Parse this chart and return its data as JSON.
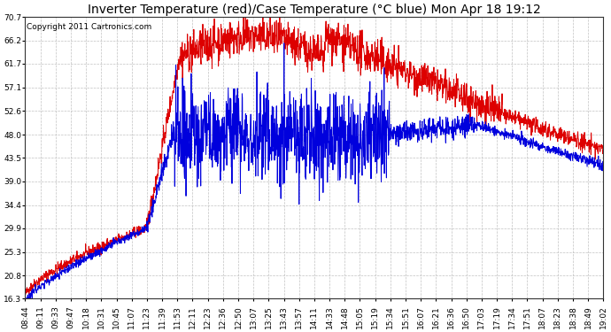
{
  "title": "Inverter Temperature (red)/Case Temperature (°C blue) Mon Apr 18 19:12",
  "copyright": "Copyright 2011 Cartronics.com",
  "ylim": [
    16.3,
    70.7
  ],
  "yticks": [
    16.3,
    20.8,
    25.3,
    29.9,
    34.4,
    39.0,
    43.5,
    48.0,
    52.6,
    57.1,
    61.7,
    66.2,
    70.7
  ],
  "xtick_labels": [
    "08:44",
    "09:11",
    "09:33",
    "09:47",
    "10:18",
    "10:31",
    "10:45",
    "11:07",
    "11:23",
    "11:39",
    "11:53",
    "12:11",
    "12:23",
    "12:36",
    "12:50",
    "13:07",
    "13:25",
    "13:43",
    "13:57",
    "14:11",
    "14:33",
    "14:48",
    "15:05",
    "15:19",
    "15:34",
    "15:51",
    "16:07",
    "16:21",
    "16:36",
    "16:50",
    "17:03",
    "17:19",
    "17:34",
    "17:51",
    "18:07",
    "18:23",
    "18:38",
    "18:49",
    "19:02"
  ],
  "red_color": "#dd0000",
  "blue_color": "#0000dd",
  "bg_color": "#ffffff",
  "grid_color": "#bbbbbb",
  "title_fontsize": 10,
  "copyright_fontsize": 6.5,
  "tick_fontsize": 6.5
}
